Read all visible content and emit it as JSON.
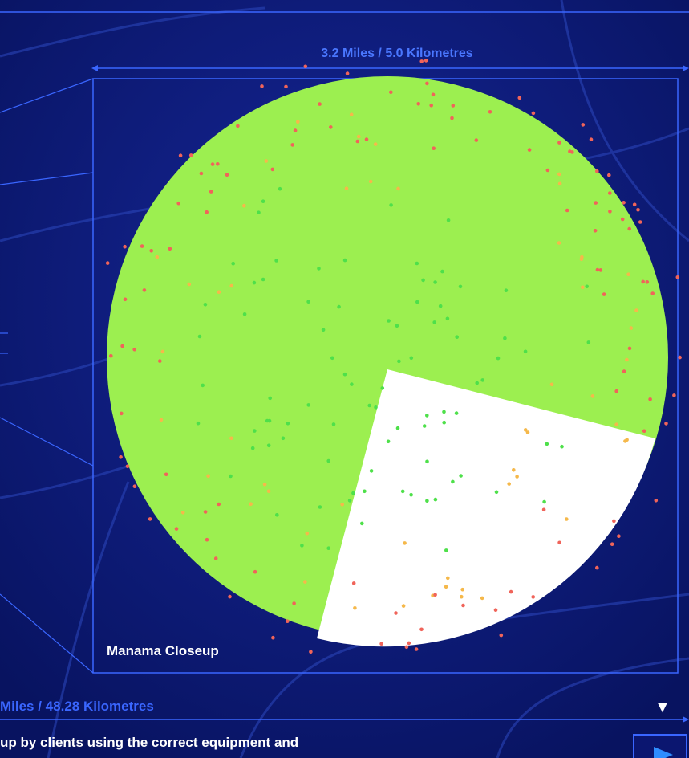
{
  "scale_top": "3.2 Miles / 5.0 Kilometres",
  "closeup_label": "Manama Closeup",
  "scale_bottom": "Miles / 48.28 Kilometres",
  "caption": "up by clients using the correct equipment and",
  "down_arrow": "▼"
}
